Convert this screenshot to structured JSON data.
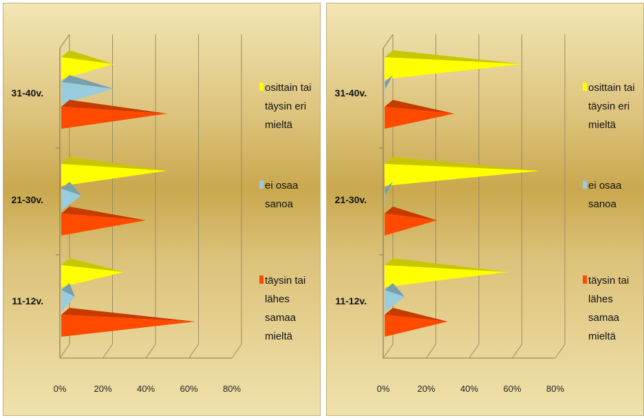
{
  "chart_data": [
    {
      "type": "bar",
      "orientation": "horizontal",
      "categories": [
        "31-40v.",
        "21-30v.",
        "11-12v."
      ],
      "x_ticks": [
        "0%",
        "20%",
        "40%",
        "60%",
        "80%"
      ],
      "xlim": [
        0,
        80
      ],
      "series": [
        {
          "name": "osittain tai täysin eri mieltä",
          "color": "#ffff00",
          "values": [
            25,
            50,
            30
          ]
        },
        {
          "name": "ei osaa sanoa",
          "color": "#99ccdd",
          "values": [
            25,
            10,
            7
          ]
        },
        {
          "name": "täysin tai lähes samaa mieltä",
          "color": "#ff4a00",
          "values": [
            50,
            40,
            63
          ]
        }
      ],
      "legend_lines": [
        [
          "osittain tai",
          "täysin eri",
          "mieltä"
        ],
        [
          "ei osaa",
          "sanoa"
        ],
        [
          "täysin tai",
          "lähes",
          "samaa",
          "mieltä"
        ]
      ],
      "legend_position": "right"
    },
    {
      "type": "bar",
      "orientation": "horizontal",
      "categories": [
        "31-40v.",
        "21-30v.",
        "11-12v."
      ],
      "x_ticks": [
        "0%",
        "20%",
        "40%",
        "60%",
        "80%"
      ],
      "xlim": [
        0,
        80
      ],
      "series": [
        {
          "name": "osittain tai täysin eri mieltä",
          "color": "#ffff00",
          "values": [
            65,
            73,
            58
          ]
        },
        {
          "name": "ei osaa sanoa",
          "color": "#99ccdd",
          "values": [
            1,
            1,
            10
          ]
        },
        {
          "name": "täysin tai lähes samaa mieltä",
          "color": "#ff4a00",
          "values": [
            33,
            25,
            30
          ]
        }
      ],
      "legend_lines": [
        [
          "osittain tai",
          "täysin eri",
          "mieltä"
        ],
        [
          "ei osaa",
          "sanoa"
        ],
        [
          "täysin tai",
          "lähes",
          "samaa",
          "mieltä"
        ]
      ],
      "legend_position": "right"
    }
  ]
}
